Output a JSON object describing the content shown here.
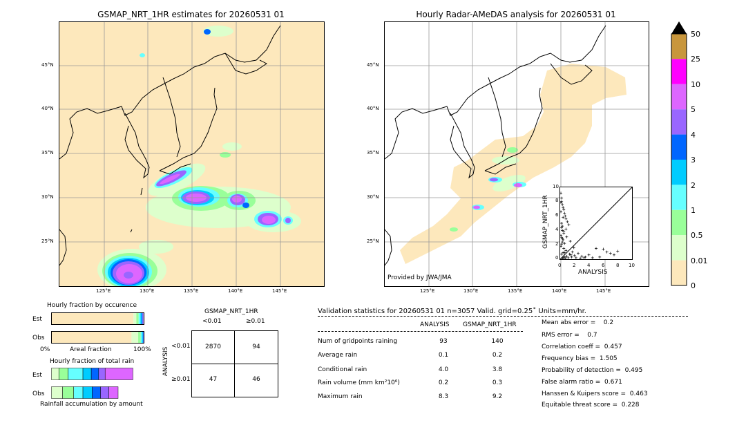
{
  "left_map": {
    "title": "GSMAP_NRT_1HR estimates for 20260531 01",
    "lat_labels": [
      "45°N",
      "40°N",
      "35°N",
      "30°N",
      "25°N"
    ],
    "lon_labels": [
      "125°E",
      "130°E",
      "135°E",
      "140°E",
      "145°E"
    ]
  },
  "right_map": {
    "title": "Hourly Radar-AMeDAS analysis for 20260531 01",
    "lat_labels": [
      "45°N",
      "40°N",
      "35°N",
      "30°N",
      "25°N"
    ],
    "lon_labels": [
      "125°E",
      "130°E",
      "135°E",
      "140°E",
      "145°E"
    ],
    "credit": "Provided by JWA/JMA"
  },
  "colorbar": {
    "labels": [
      "50",
      "25",
      "10",
      "5",
      "4",
      "3",
      "2",
      "1",
      "0.5",
      "0.01",
      "0"
    ],
    "colors": [
      "#c8963c",
      "#ff00ff",
      "#dd66ff",
      "#9966ff",
      "#0066ff",
      "#00ccff",
      "#66ffff",
      "#99ff99",
      "#ddffcc",
      "#fde8bc"
    ],
    "over_color": "#000000"
  },
  "scatter": {
    "xlabel": "ANALYSIS",
    "ylabel": "GSMAP_NRT_1HR",
    "ticks": [
      "0",
      "2",
      "4",
      "6",
      "8",
      "10"
    ]
  },
  "chart_data": [
    {
      "type": "scatter",
      "title": "",
      "xlabel": "ANALYSIS",
      "ylabel": "GSMAP_NRT_1HR",
      "xlim": [
        0,
        10
      ],
      "ylim": [
        0,
        10
      ],
      "x": [
        0.1,
        0.2,
        0.3,
        0.4,
        0.5,
        0.6,
        0.7,
        0.8,
        1.0,
        1.2,
        0.2,
        0.3,
        0.5,
        0.1,
        0.2,
        0.4,
        0.3,
        0.2,
        0.1,
        0.5,
        0.8,
        0.6,
        1.5,
        2.0,
        2.5,
        3.0,
        3.5,
        4.0,
        4.5,
        5.0,
        6.0,
        7.0,
        8.0,
        0.3,
        0.4,
        0.6,
        0.7,
        0.9,
        1.1,
        1.3,
        1.6,
        2.2,
        2.8,
        3.3,
        5.5,
        6.5,
        7.5,
        0.2,
        0.4,
        0.1,
        0.3,
        0.5,
        0.2,
        0.6,
        0.9,
        1.4,
        1.9,
        0.3,
        0.1,
        0.2,
        0.8,
        1.7,
        0.4
      ],
      "y": [
        9.2,
        8.5,
        7.6,
        7.2,
        6.9,
        6.4,
        6.0,
        5.6,
        5.2,
        4.8,
        4.4,
        4.0,
        3.6,
        3.3,
        3.0,
        2.7,
        2.4,
        2.1,
        1.8,
        1.5,
        1.2,
        0.9,
        0.6,
        0.5,
        0.8,
        0.4,
        0.3,
        0.6,
        0.2,
        1.5,
        1.4,
        0.8,
        1.1,
        0.1,
        0.2,
        0.3,
        0.1,
        0.4,
        0.2,
        0.7,
        0.3,
        0.2,
        0.1,
        0.2,
        0.3,
        1.0,
        0.6,
        5.0,
        5.8,
        6.6,
        4.6,
        3.9,
        8.0,
        2.2,
        3.1,
        2.5,
        1.6,
        2.9,
        7.9,
        0.7,
        4.2,
        1.0,
        0.9
      ]
    },
    {
      "type": "table",
      "title": "GSMAP_NRT_1HR",
      "col_headers": [
        "<0.01",
        "≥0.01"
      ],
      "row_label": "ANALYSIS",
      "row_headers": [
        "<0.01",
        "≥0.01"
      ],
      "cells": [
        [
          "2870",
          "94"
        ],
        [
          "47",
          "46"
        ]
      ]
    },
    {
      "type": "bar",
      "title": "Hourly fraction by occurence",
      "categories": [
        "Est",
        "Obs"
      ],
      "x_ticks": [
        "0%",
        "100%"
      ],
      "xlabel": "Areal fraction",
      "series": [
        {
          "colors": [
            "#fde8bc",
            "#ddffcc",
            "#99ff99",
            "#66ffff",
            "#00ccff",
            "#0066ff",
            "#9966ff"
          ],
          "Est": [
            0.886,
            0.031,
            0.025,
            0.019,
            0.013,
            0.01,
            0.01
          ],
          "Obs": [
            0.865,
            0.072,
            0.028,
            0.013,
            0.01,
            0.006,
            0.006
          ]
        }
      ]
    },
    {
      "type": "bar",
      "title": "Hourly fraction of total rain",
      "categories": [
        "Est",
        "Obs"
      ],
      "xlabel": "Rainfall accumulation by amount",
      "series": [
        {
          "colors": [
            "#ddffcc",
            "#99ff99",
            "#66ffff",
            "#00ccff",
            "#0066ff",
            "#9966ff",
            "#dd66ff"
          ],
          "Est": [
            0.08,
            0.1,
            0.16,
            0.09,
            0.08,
            0.07,
            0.3
          ],
          "Obs": [
            0.12,
            0.12,
            0.1,
            0.1,
            0.09,
            0.09,
            0.1
          ]
        }
      ]
    }
  ],
  "occurrence": {
    "title": "Hourly fraction by occurence",
    "rows": [
      "Est",
      "Obs"
    ],
    "x_left": "0%",
    "x_right": "100%",
    "xlabel": "Areal fraction"
  },
  "total_rain": {
    "title": "Hourly fraction of total rain",
    "rows": [
      "Est",
      "Obs"
    ],
    "xlabel": "Rainfall accumulation by amount"
  },
  "contingency": {
    "title": "GSMAP_NRT_1HR",
    "col1": "<0.01",
    "col2": "≥0.01",
    "row_axis": "ANALYSIS",
    "row1": "<0.01",
    "row2": "≥0.01",
    "c11": "2870",
    "c12": "94",
    "c21": "47",
    "c22": "46"
  },
  "validation": {
    "header": "Validation statistics for 20260531 01  n=3057 Valid. grid=0.25˚ Units=mm/hr.",
    "col_analysis": "ANALYSIS",
    "col_gsmap": "GSMAP_NRT_1HR",
    "rows": [
      {
        "label": "Num of gridpoints raining",
        "analysis": "93",
        "gsmap": "140"
      },
      {
        "label": "Average rain",
        "analysis": "0.1",
        "gsmap": "0.2"
      },
      {
        "label": "Conditional rain",
        "analysis": "4.0",
        "gsmap": "3.8"
      },
      {
        "label": "Rain volume (mm km²10⁶)",
        "analysis": "0.2",
        "gsmap": "0.3"
      },
      {
        "label": "Maximum rain",
        "analysis": "8.3",
        "gsmap": "9.2"
      }
    ],
    "scores": [
      "Mean abs error =    0.2",
      "RMS error =    0.7",
      "Correlation coeff =  0.457",
      "Frequency bias =  1.505",
      "Probability of detection =  0.495",
      "False alarm ratio =  0.671",
      "Hanssen & Kuipers score =  0.463",
      "Equitable threat score =  0.228"
    ]
  }
}
